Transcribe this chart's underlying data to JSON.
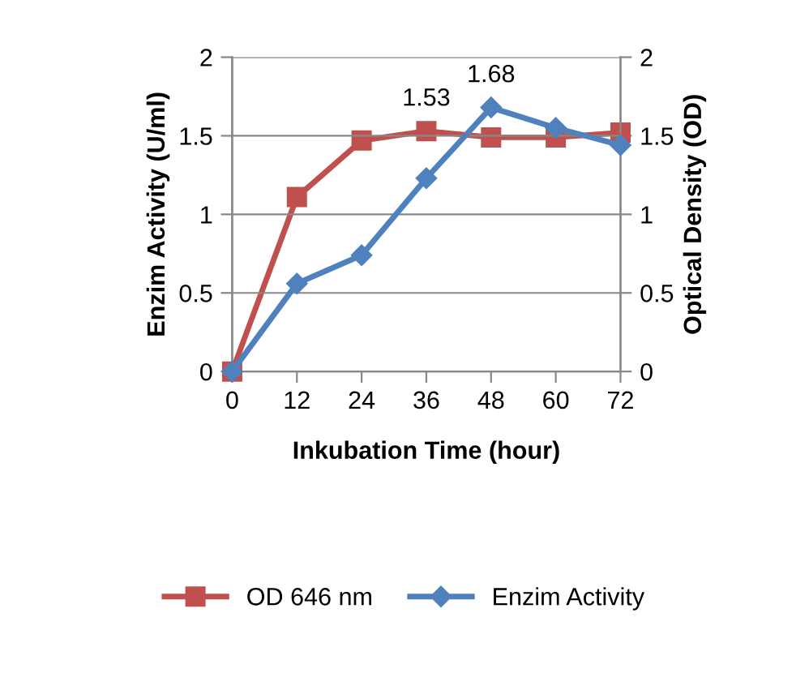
{
  "chart_data": {
    "type": "line",
    "xlabel": "Inkubation Time (hour)",
    "ylabel": "Enzim Activity (U/ml)",
    "y2label": "Optical Density (OD)",
    "categories": [
      "0",
      "12",
      "24",
      "36",
      "48",
      "60",
      "72"
    ],
    "series": [
      {
        "name": "OD 646 nm",
        "color": "#c0504d",
        "axis": "y2",
        "marker": "square",
        "values": [
          0,
          1.11,
          1.47,
          1.53,
          1.49,
          1.49,
          1.52
        ],
        "value_labels": [
          null,
          null,
          null,
          "1.53",
          null,
          null,
          null
        ]
      },
      {
        "name": "Enzim Activity",
        "color": "#4f81bd",
        "marker": "diamond",
        "values": [
          0,
          0.56,
          0.74,
          1.23,
          1.68,
          1.55,
          1.44
        ],
        "value_labels": [
          null,
          null,
          null,
          null,
          "1.68",
          null,
          null
        ]
      }
    ],
    "ylim": [
      0,
      2
    ],
    "yticks": [
      0,
      0.5,
      1,
      1.5,
      2
    ],
    "y2lim": [
      0,
      2
    ],
    "y2ticks": [
      0,
      0.5,
      1,
      1.5,
      2
    ],
    "grid": "y",
    "legend": "bottom"
  }
}
